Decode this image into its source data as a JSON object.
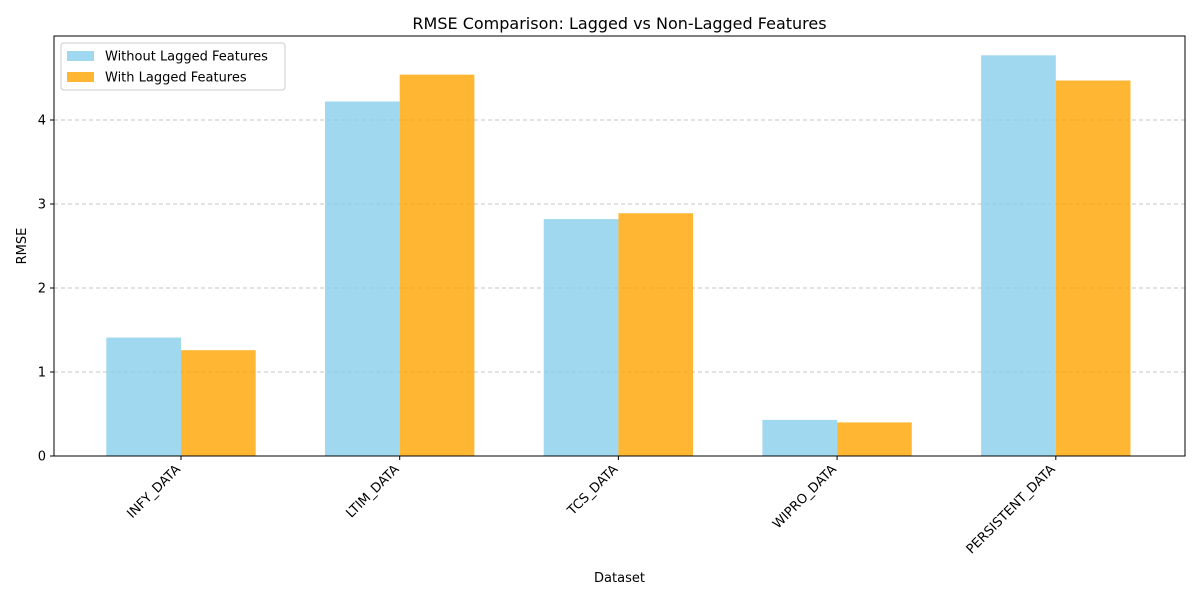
{
  "chart_data": {
    "type": "bar",
    "title": "RMSE Comparison: Lagged vs Non-Lagged Features",
    "xlabel": "Dataset",
    "ylabel": "RMSE",
    "categories": [
      "INFY_DATA",
      "LTIM_DATA",
      "TCS_DATA",
      "WIPRO_DATA",
      "PERSISTENT_DATA"
    ],
    "series": [
      {
        "name": "Without Lagged Features",
        "color": "#87ceeb",
        "values": [
          1.41,
          4.22,
          2.82,
          0.43,
          4.77
        ]
      },
      {
        "name": "With Lagged Features",
        "color": "#ffa500",
        "values": [
          1.26,
          4.54,
          2.89,
          0.4,
          4.47
        ]
      }
    ],
    "ylim": [
      0,
      5.0
    ],
    "yticks": [
      0,
      1,
      2,
      3,
      4
    ],
    "grid": "y-dashed",
    "legend_position": "top-left"
  }
}
